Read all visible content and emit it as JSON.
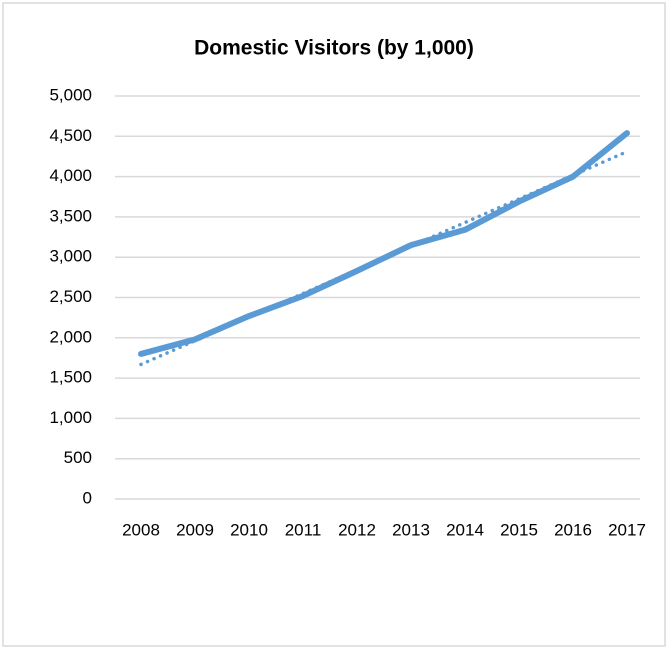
{
  "chart_data": {
    "type": "line",
    "title": "Domestic Visitors (by 1,000)",
    "categories": [
      "2008",
      "2009",
      "2010",
      "2011",
      "2012",
      "2013",
      "2014",
      "2015",
      "2016",
      "2017"
    ],
    "series": [
      {
        "color": "#5b9bd5",
        "values": [
          1800,
          1980,
          2270,
          2520,
          2830,
          3150,
          3340,
          3690,
          4000,
          4540
        ]
      },
      {
        "color": "#5b9bd5",
        "dash": "dotted",
        "values": [
          1670,
          1963,
          2257,
          2550,
          2843,
          3137,
          3430,
          3723,
          4017,
          4310
        ]
      }
    ],
    "ylim": [
      0,
      5000
    ],
    "yticks": [
      0,
      500,
      {
        "value": 1000,
        "label": "1,000"
      },
      {
        "value": 1500,
        "label": "1,500"
      },
      {
        "value": 2000,
        "label": "2,000"
      },
      {
        "value": 2500,
        "label": "2,500"
      },
      {
        "value": 3000,
        "label": "3,000"
      },
      {
        "value": 3500,
        "label": "3,500"
      },
      {
        "value": 4000,
        "label": "4,000"
      },
      {
        "value": 4500,
        "label": "4,500"
      },
      {
        "value": 5000,
        "label": "5,000"
      }
    ],
    "grid": true
  }
}
